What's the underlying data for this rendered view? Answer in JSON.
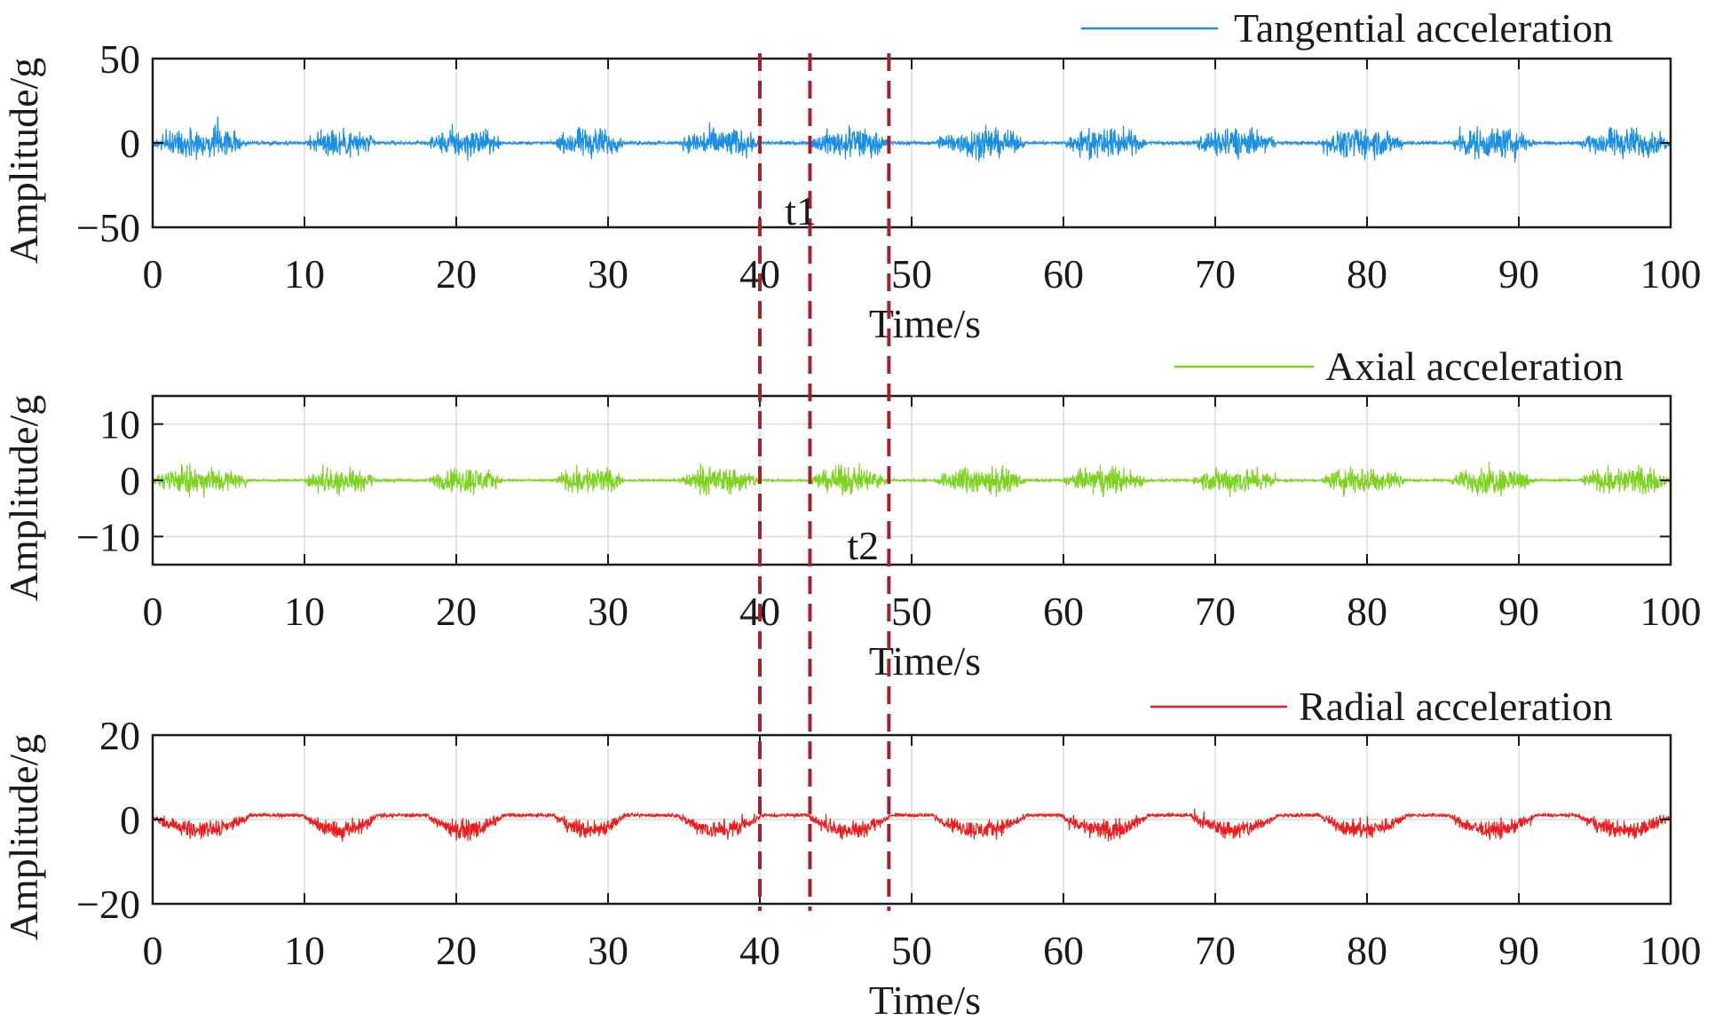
{
  "colors": {
    "tangential": "#1a8fe3",
    "axial": "#7ed321",
    "radial": "#ee1c1c",
    "marker": "#a5212e",
    "grid": "#dcdcdc",
    "axis": "#1a1a1a"
  },
  "chart_data": [
    {
      "type": "line",
      "series": [
        {
          "name": "Tangential acceleration",
          "color": "tangential"
        }
      ],
      "xlabel": "Time/s",
      "ylabel": "Amplitude/g",
      "xlim": [
        0,
        100
      ],
      "ylim": [
        -50,
        50
      ],
      "xticks": [
        "0",
        "10",
        "20",
        "30",
        "40",
        "50",
        "60",
        "70",
        "80",
        "90",
        "100"
      ],
      "yticks": [
        {
          "value": 50,
          "label": "50"
        },
        {
          "value": 0,
          "label": "0"
        },
        {
          "value": -50,
          "label": "−50"
        }
      ],
      "grid": true,
      "legend": "top-right",
      "envelope": {
        "active_amplitude": 12,
        "idle_amplitude": 1.5,
        "peak_extra": 8
      }
    },
    {
      "type": "line",
      "series": [
        {
          "name": "Axial acceleration",
          "color": "axial"
        }
      ],
      "xlabel": "Time/s",
      "ylabel": "Amplitude/g",
      "xlim": [
        0,
        100
      ],
      "ylim": [
        -15,
        15
      ],
      "xticks": [
        "0",
        "10",
        "20",
        "30",
        "40",
        "50",
        "60",
        "70",
        "80",
        "90",
        "100"
      ],
      "yticks": [
        {
          "value": 10,
          "label": "10"
        },
        {
          "value": 0,
          "label": "0"
        },
        {
          "value": -10,
          "label": "−10"
        }
      ],
      "grid": true,
      "legend": "top-right",
      "envelope": {
        "active_amplitude": 3.4,
        "idle_amplitude": 0.3,
        "peak_extra": 1.6
      }
    },
    {
      "type": "line",
      "series": [
        {
          "name": "Radial acceleration",
          "color": "radial"
        }
      ],
      "xlabel": "Time/s",
      "ylabel": "Amplitude/g",
      "xlim": [
        0,
        100
      ],
      "ylim": [
        -20,
        20
      ],
      "xticks": [
        "0",
        "10",
        "20",
        "30",
        "40",
        "50",
        "60",
        "70",
        "80",
        "90",
        "100"
      ],
      "yticks": [
        {
          "value": 20,
          "label": "20"
        },
        {
          "value": 0,
          "label": "0"
        },
        {
          "value": -20,
          "label": "−20"
        }
      ],
      "grid": true,
      "legend": "top-right",
      "envelope": {
        "active_amplitude": 3.5,
        "idle_amplitude": 0.6,
        "peak_extra": 3,
        "offset": 1,
        "dip": -3
      }
    }
  ],
  "activity_windows": [
    [
      0,
      6.3
    ],
    [
      10,
      14.7
    ],
    [
      18.2,
      23
    ],
    [
      26.5,
      31
    ],
    [
      34.7,
      40
    ],
    [
      43.3,
      48.5
    ],
    [
      51.5,
      57.5
    ],
    [
      60,
      65.5
    ],
    [
      68.5,
      74
    ],
    [
      77,
      82.5
    ],
    [
      85.5,
      91
    ],
    [
      94,
      100
    ]
  ],
  "markers": [
    {
      "x": 40,
      "label": ""
    },
    {
      "x": 43.3,
      "label": ""
    },
    {
      "x": 48.5,
      "label": ""
    }
  ],
  "annotations": [
    {
      "text": "t1",
      "x": 42.7,
      "panel": 0,
      "y": -40
    },
    {
      "text": "t2",
      "x": 46.8,
      "panel": 1,
      "y": -11.5
    }
  ]
}
